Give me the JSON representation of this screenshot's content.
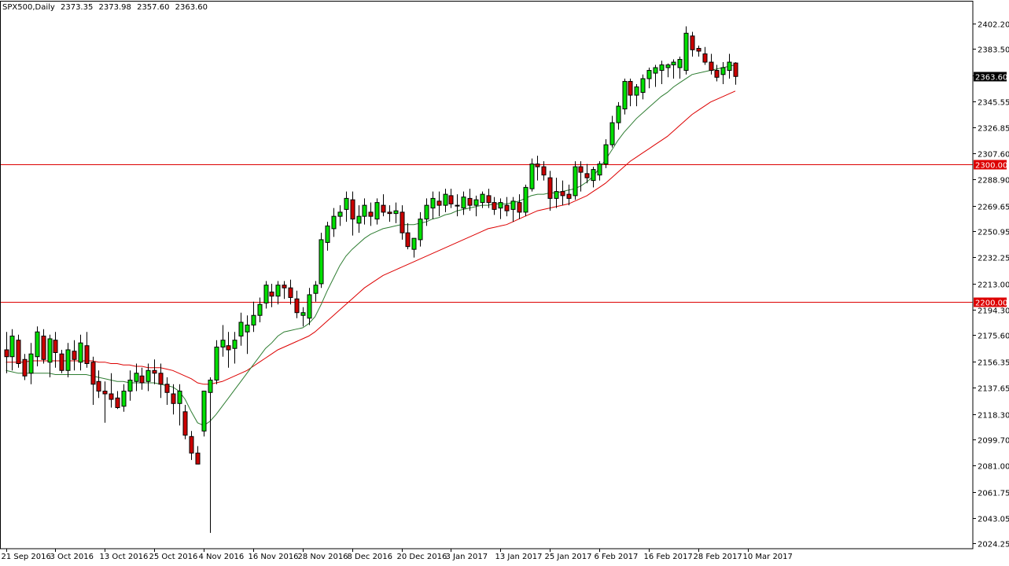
{
  "header": {
    "symbol": "SPX500,Daily",
    "open": "2373.35",
    "high": "2373.98",
    "low": "2357.60",
    "close": "2363.60"
  },
  "colors": {
    "bull": "#00e000",
    "bear": "#cc0000",
    "wick": "#000000",
    "ma_fast": "#2e7d32",
    "ma_slow": "#dd0000",
    "hline": "#dd0000",
    "price_tag_bg": "#000000",
    "hline_tag_bg": "#dd0000",
    "axis": "#000000"
  },
  "chart_data": {
    "type": "candlestick",
    "y_ticks": [
      2024.25,
      2043.05,
      2061.75,
      2081.0,
      2099.7,
      2118.3,
      2137.65,
      2156.35,
      2175.6,
      2194.3,
      2213.0,
      2232.25,
      2250.95,
      2269.65,
      2288.9,
      2307.6,
      2326.85,
      2345.55,
      2364.25,
      2383.5,
      2402.2
    ],
    "y_tick_labels": [
      "2024.25",
      "2043.05",
      "2061.75",
      "2081.00",
      "2099.70",
      "2118.30",
      "2137.65",
      "2156.35",
      "2175.60",
      "2194.30",
      "2213.00",
      "2232.25",
      "2250.95",
      "2269.65",
      "2288.90",
      "2307.60",
      "2326.85",
      "2345.55",
      "",
      "2383.50",
      "2402.20"
    ],
    "ylim": [
      2020.5,
      2418.0
    ],
    "x_labels": [
      {
        "label": "21 Sep 2016",
        "index": 0
      },
      {
        "label": "3 Oct 2016",
        "index": 8
      },
      {
        "label": "13 Oct 2016",
        "index": 16
      },
      {
        "label": "25 Oct 2016",
        "index": 24
      },
      {
        "label": "4 Nov 2016",
        "index": 32
      },
      {
        "label": "16 Nov 2016",
        "index": 40
      },
      {
        "label": "28 Nov 2016",
        "index": 48
      },
      {
        "label": "8 Dec 2016",
        "index": 56
      },
      {
        "label": "20 Dec 2016",
        "index": 64
      },
      {
        "label": "3 Jan 2017",
        "index": 72
      },
      {
        "label": "13 Jan 2017",
        "index": 80
      },
      {
        "label": "25 Jan 2017",
        "index": 88
      },
      {
        "label": "6 Feb 2017",
        "index": 96
      },
      {
        "label": "16 Feb 2017",
        "index": 104
      },
      {
        "label": "28 Feb 2017",
        "index": 112
      },
      {
        "label": "10 Mar 2017",
        "index": 120
      }
    ],
    "horizontal_lines": [
      {
        "price": 2300.0,
        "label": "2300.00"
      },
      {
        "price": 2200.0,
        "label": "2200.00"
      }
    ],
    "last_price": {
      "price": 2363.6,
      "label": "2363.60"
    },
    "candles": [
      [
        2165,
        2178,
        2148,
        2160
      ],
      [
        2160,
        2180,
        2150,
        2175
      ],
      [
        2172,
        2176,
        2152,
        2155
      ],
      [
        2158,
        2162,
        2143,
        2146
      ],
      [
        2148,
        2170,
        2140,
        2162
      ],
      [
        2160,
        2182,
        2153,
        2178
      ],
      [
        2175,
        2180,
        2155,
        2158
      ],
      [
        2156,
        2176,
        2145,
        2173
      ],
      [
        2172,
        2178,
        2152,
        2163
      ],
      [
        2162,
        2165,
        2148,
        2150
      ],
      [
        2150,
        2170,
        2145,
        2165
      ],
      [
        2164,
        2172,
        2150,
        2158
      ],
      [
        2156,
        2176,
        2150,
        2170
      ],
      [
        2168,
        2178,
        2152,
        2155
      ],
      [
        2156,
        2160,
        2125,
        2140
      ],
      [
        2142,
        2150,
        2130,
        2135
      ],
      [
        2135,
        2142,
        2112,
        2133
      ],
      [
        2133,
        2148,
        2123,
        2129
      ],
      [
        2130,
        2135,
        2122,
        2123
      ],
      [
        2124,
        2140,
        2120,
        2135
      ],
      [
        2135,
        2150,
        2128,
        2143
      ],
      [
        2142,
        2155,
        2135,
        2148
      ],
      [
        2146,
        2152,
        2136,
        2141
      ],
      [
        2142,
        2155,
        2135,
        2150
      ],
      [
        2150,
        2158,
        2140,
        2148
      ],
      [
        2148,
        2155,
        2130,
        2140
      ],
      [
        2140,
        2145,
        2125,
        2134
      ],
      [
        2133,
        2140,
        2118,
        2126
      ],
      [
        2126,
        2140,
        2110,
        2135
      ],
      [
        2120,
        2125,
        2100,
        2103
      ],
      [
        2102,
        2106,
        2085,
        2090
      ],
      [
        2090,
        2095,
        2082,
        2082
      ],
      [
        2106,
        2135,
        2102,
        2135
      ],
      [
        2134,
        2145,
        2032,
        2143
      ],
      [
        2143,
        2172,
        2140,
        2167
      ],
      [
        2167,
        2183,
        2160,
        2172
      ],
      [
        2168,
        2178,
        2152,
        2165
      ],
      [
        2166,
        2178,
        2155,
        2172
      ],
      [
        2175,
        2192,
        2168,
        2185
      ],
      [
        2178,
        2190,
        2162,
        2183
      ],
      [
        2183,
        2200,
        2178,
        2190
      ],
      [
        2190,
        2203,
        2185,
        2198
      ],
      [
        2199,
        2215,
        2195,
        2212
      ],
      [
        2207,
        2213,
        2196,
        2204
      ],
      [
        2204,
        2215,
        2198,
        2212
      ],
      [
        2212,
        2215,
        2202,
        2210
      ],
      [
        2210,
        2216,
        2198,
        2203
      ],
      [
        2202,
        2208,
        2188,
        2192
      ],
      [
        2190,
        2196,
        2182,
        2192
      ],
      [
        2188,
        2210,
        2183,
        2205
      ],
      [
        2206,
        2215,
        2200,
        2212
      ],
      [
        2213,
        2250,
        2210,
        2245
      ],
      [
        2243,
        2258,
        2237,
        2255
      ],
      [
        2253,
        2268,
        2247,
        2262
      ],
      [
        2262,
        2270,
        2255,
        2265
      ],
      [
        2267,
        2280,
        2258,
        2275
      ],
      [
        2274,
        2280,
        2248,
        2260
      ],
      [
        2257,
        2270,
        2250,
        2262
      ],
      [
        2262,
        2275,
        2256,
        2270
      ],
      [
        2265,
        2272,
        2255,
        2262
      ],
      [
        2260,
        2275,
        2256,
        2272
      ],
      [
        2270,
        2278,
        2262,
        2265
      ],
      [
        2265,
        2270,
        2258,
        2264
      ],
      [
        2264,
        2272,
        2257,
        2266
      ],
      [
        2265,
        2270,
        2245,
        2250
      ],
      [
        2250,
        2257,
        2238,
        2240
      ],
      [
        2238,
        2245,
        2232,
        2246
      ],
      [
        2245,
        2265,
        2240,
        2260
      ],
      [
        2260,
        2275,
        2255,
        2270
      ],
      [
        2268,
        2280,
        2260,
        2275
      ],
      [
        2273,
        2280,
        2262,
        2270
      ],
      [
        2270,
        2282,
        2265,
        2278
      ],
      [
        2277,
        2282,
        2268,
        2271
      ],
      [
        2270,
        2278,
        2262,
        2270
      ],
      [
        2268,
        2280,
        2263,
        2276
      ],
      [
        2275,
        2282,
        2266,
        2270
      ],
      [
        2270,
        2277,
        2262,
        2274
      ],
      [
        2272,
        2280,
        2268,
        2278
      ],
      [
        2277,
        2282,
        2268,
        2272
      ],
      [
        2272,
        2276,
        2263,
        2267
      ],
      [
        2268,
        2275,
        2260,
        2272
      ],
      [
        2270,
        2276,
        2262,
        2266
      ],
      [
        2267,
        2276,
        2258,
        2273
      ],
      [
        2272,
        2278,
        2260,
        2265
      ],
      [
        2265,
        2285,
        2262,
        2283
      ],
      [
        2282,
        2304,
        2280,
        2300
      ],
      [
        2300,
        2306,
        2288,
        2298
      ],
      [
        2298,
        2302,
        2288,
        2292
      ],
      [
        2290,
        2295,
        2266,
        2275
      ],
      [
        2275,
        2290,
        2268,
        2280
      ],
      [
        2280,
        2288,
        2270,
        2277
      ],
      [
        2278,
        2285,
        2270,
        2275
      ],
      [
        2277,
        2302,
        2274,
        2298
      ],
      [
        2298,
        2302,
        2280,
        2294
      ],
      [
        2293,
        2300,
        2286,
        2290
      ],
      [
        2288,
        2298,
        2283,
        2296
      ],
      [
        2292,
        2302,
        2288,
        2300
      ],
      [
        2300,
        2318,
        2297,
        2314
      ],
      [
        2314,
        2335,
        2312,
        2330
      ],
      [
        2330,
        2345,
        2325,
        2342
      ],
      [
        2340,
        2362,
        2336,
        2360
      ],
      [
        2360,
        2362,
        2342,
        2350
      ],
      [
        2350,
        2358,
        2342,
        2356
      ],
      [
        2352,
        2365,
        2347,
        2362
      ],
      [
        2362,
        2370,
        2355,
        2368
      ],
      [
        2366,
        2372,
        2356,
        2370
      ],
      [
        2368,
        2375,
        2358,
        2372
      ],
      [
        2370,
        2373,
        2363,
        2372
      ],
      [
        2372,
        2376,
        2362,
        2374
      ],
      [
        2370,
        2378,
        2362,
        2376
      ],
      [
        2368,
        2400,
        2365,
        2395
      ],
      [
        2393,
        2396,
        2378,
        2383
      ],
      [
        2384,
        2386,
        2378,
        2382
      ],
      [
        2380,
        2385,
        2372,
        2374
      ],
      [
        2374,
        2380,
        2365,
        2368
      ],
      [
        2368,
        2372,
        2360,
        2363
      ],
      [
        2365,
        2374,
        2358,
        2370
      ],
      [
        2368,
        2380,
        2362,
        2374
      ],
      [
        2373.35,
        2373.98,
        2357.6,
        2363.6
      ]
    ],
    "ma_fast": [
      2150,
      2149,
      2148,
      2148,
      2148,
      2148,
      2148,
      2148,
      2147,
      2147,
      2147,
      2147,
      2147,
      2147,
      2146,
      2145,
      2144,
      2143,
      2142,
      2142,
      2141,
      2141,
      2141,
      2141,
      2141,
      2140,
      2139,
      2138,
      2135,
      2129,
      2120,
      2112,
      2110,
      2113,
      2118,
      2124,
      2130,
      2136,
      2142,
      2148,
      2154,
      2160,
      2166,
      2170,
      2175,
      2178,
      2179,
      2180,
      2181,
      2184,
      2189,
      2198,
      2208,
      2217,
      2226,
      2233,
      2238,
      2242,
      2246,
      2249,
      2251,
      2253,
      2254,
      2255,
      2256,
      2256,
      2256,
      2257,
      2258,
      2260,
      2261,
      2263,
      2264,
      2266,
      2267,
      2268,
      2269,
      2270,
      2270,
      2271,
      2271,
      2271,
      2272,
      2273,
      2275,
      2277,
      2278,
      2278,
      2279,
      2279,
      2280,
      2281,
      2282,
      2284,
      2287,
      2291,
      2297,
      2303,
      2310,
      2317,
      2323,
      2328,
      2333,
      2337,
      2341,
      2345,
      2349,
      2352,
      2356,
      2359,
      2362,
      2365,
      2366,
      2367,
      2368,
      2369,
      2370,
      2371,
      2372
    ],
    "ma_slow": [
      2156,
      2156,
      2156,
      2156,
      2157,
      2157,
      2157,
      2157,
      2157,
      2157,
      2157,
      2157,
      2157,
      2157,
      2157,
      2156,
      2156,
      2155,
      2155,
      2154,
      2154,
      2153,
      2153,
      2152,
      2152,
      2152,
      2151,
      2150,
      2148,
      2146,
      2144,
      2141,
      2140,
      2140,
      2141,
      2142,
      2144,
      2146,
      2148,
      2150,
      2153,
      2156,
      2159,
      2162,
      2165,
      2167,
      2169,
      2171,
      2173,
      2175,
      2178,
      2182,
      2186,
      2190,
      2194,
      2198,
      2202,
      2206,
      2210,
      2213,
      2216,
      2219,
      2221,
      2223,
      2225,
      2227,
      2229,
      2231,
      2233,
      2235,
      2237,
      2239,
      2241,
      2243,
      2245,
      2247,
      2249,
      2251,
      2253,
      2254,
      2255,
      2256,
      2258,
      2260,
      2262,
      2264,
      2266,
      2267,
      2268,
      2269,
      2270,
      2271,
      2273,
      2275,
      2277,
      2280,
      2283,
      2286,
      2290,
      2294,
      2298,
      2302,
      2305,
      2308,
      2311,
      2314,
      2317,
      2320,
      2324,
      2328,
      2332,
      2336,
      2339,
      2342,
      2345,
      2347,
      2349,
      2351,
      2353
    ]
  }
}
